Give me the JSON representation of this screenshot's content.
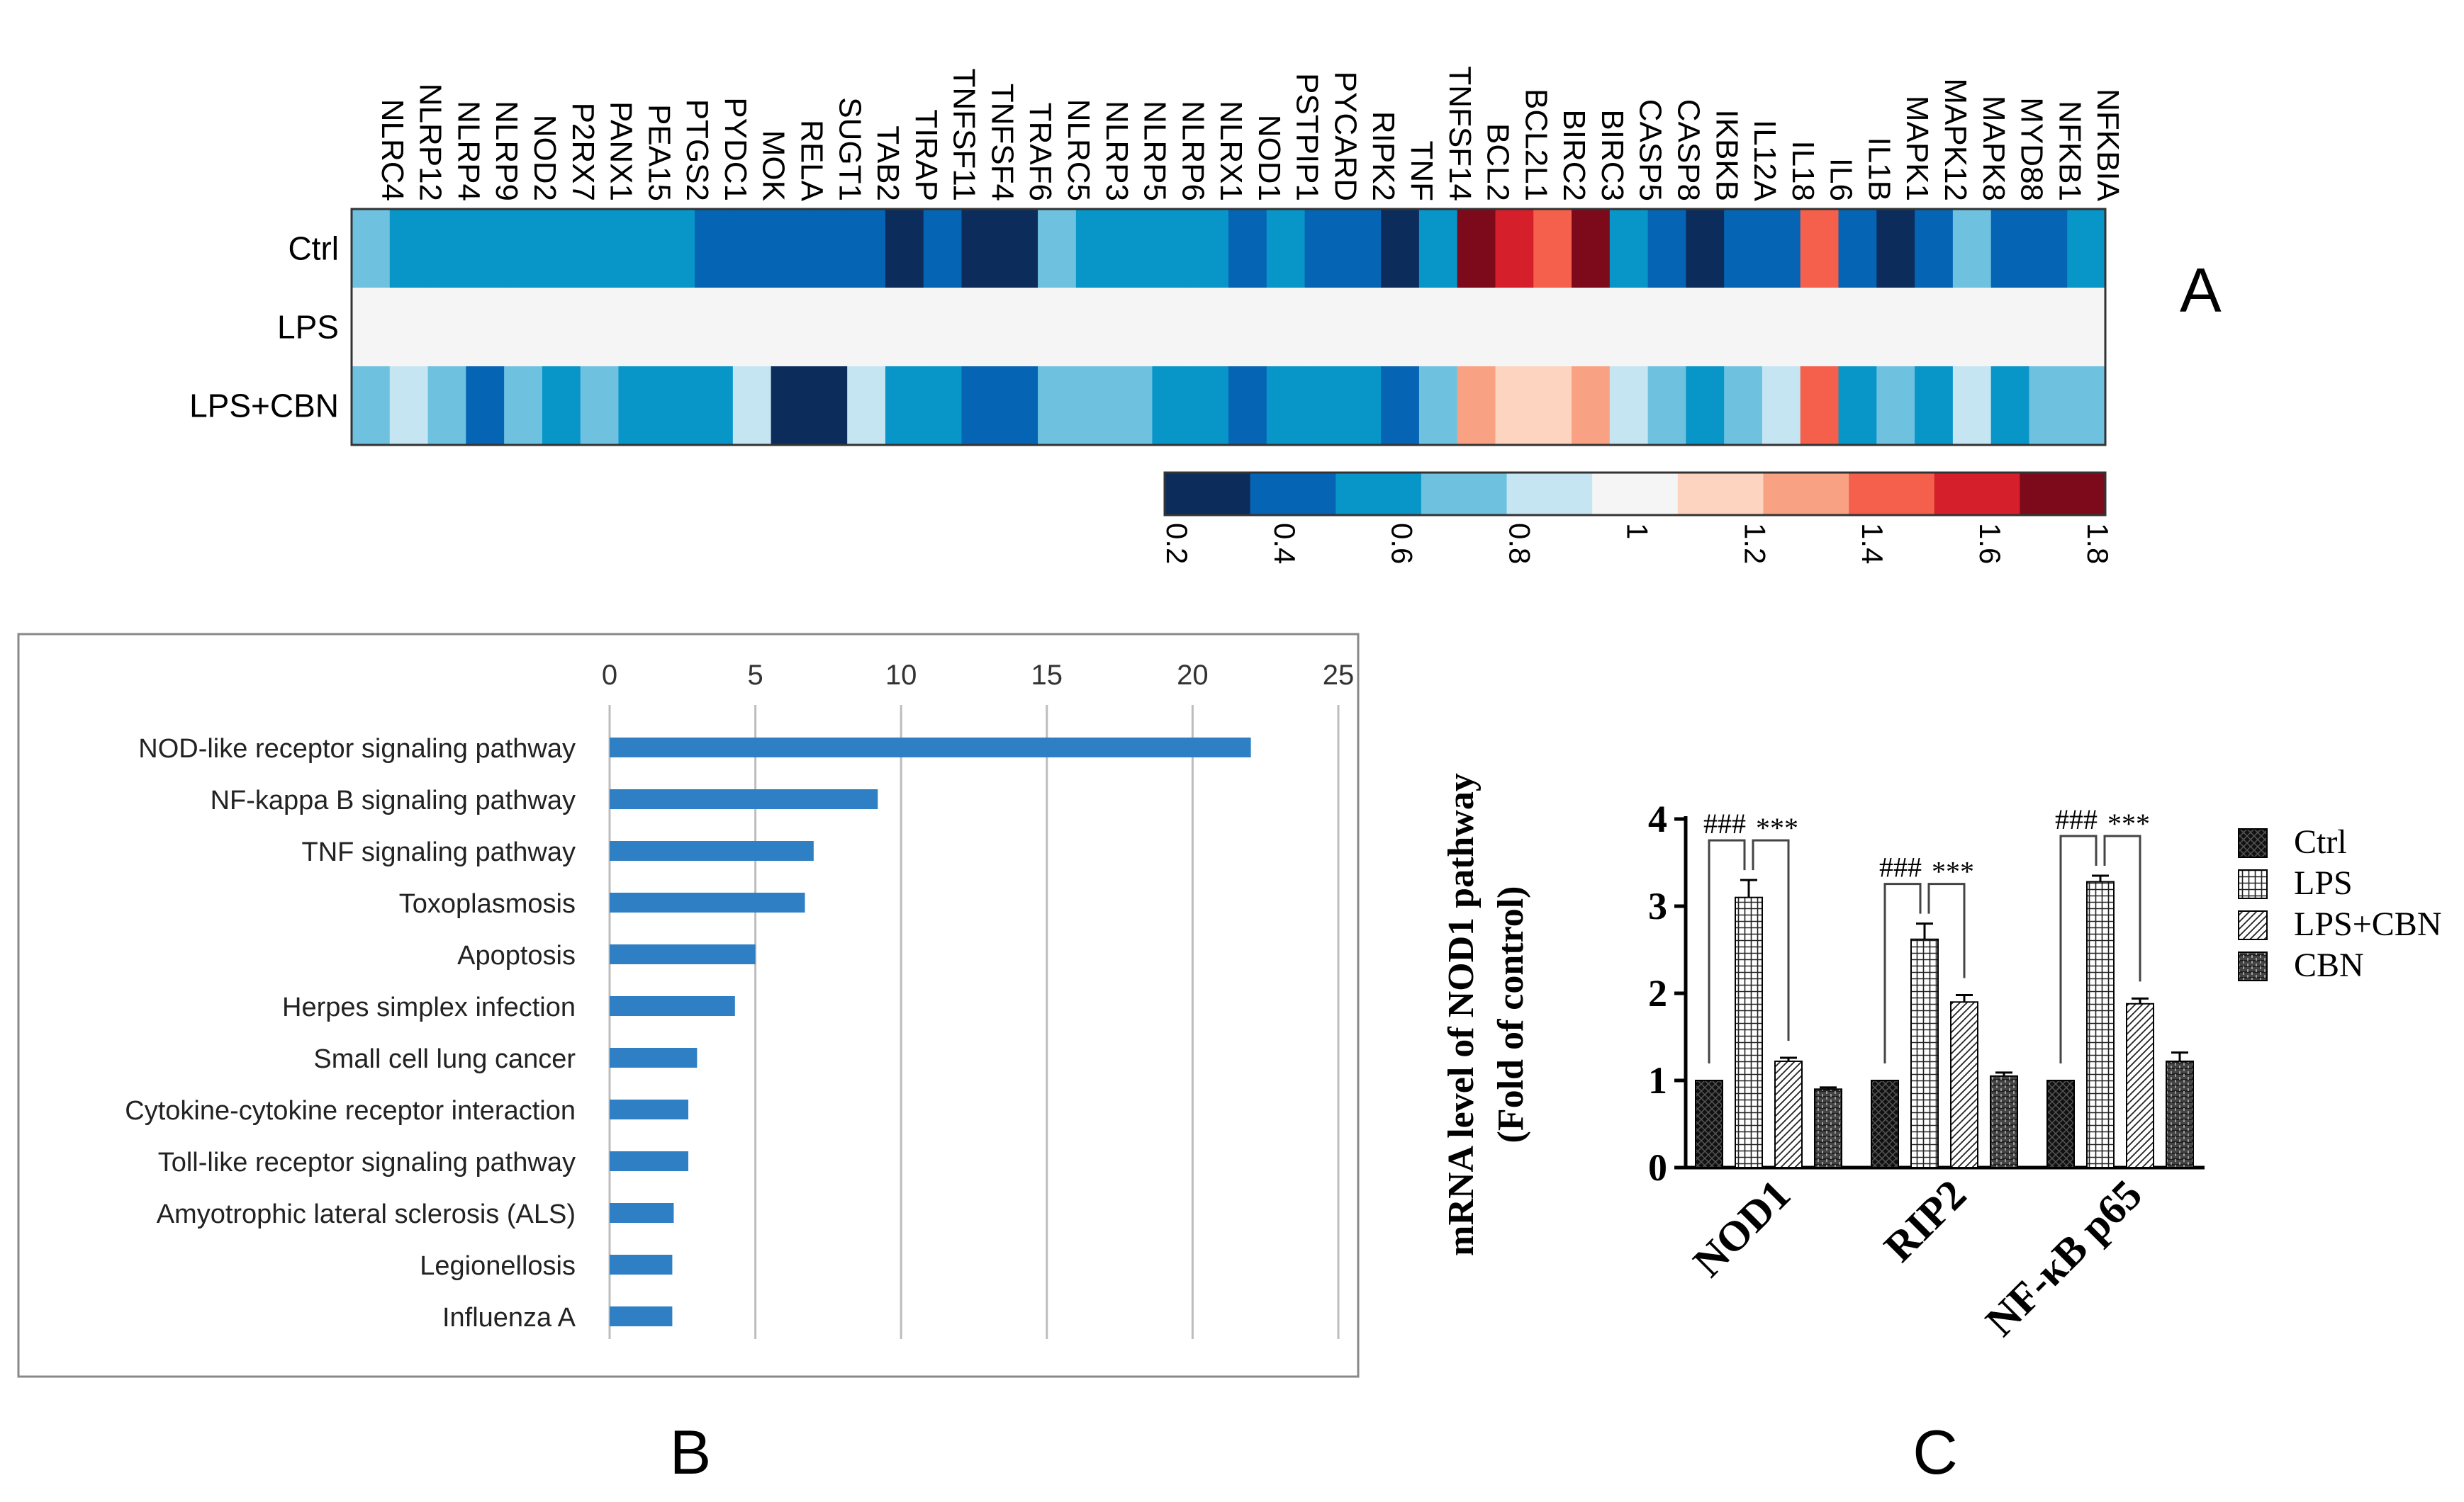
{
  "chart_data": [
    {
      "panel": "A",
      "type": "heatmap",
      "genes": [
        "NLRC4",
        "NLRP12",
        "NLRP4",
        "NLRP9",
        "NOD2",
        "P2RX7",
        "PANX1",
        "PEA15",
        "PTGS2",
        "PYDC1",
        "MOK",
        "RELA",
        "SUGT1",
        "TAB2",
        "TIRAP",
        "TNFSF11",
        "TNFSF4",
        "TRAF6",
        "NLRC5",
        "NLRP3",
        "NLRP5",
        "NLRP6",
        "NLRX1",
        "NOD1",
        "PSTPIP1",
        "PYCARD",
        "RIPK2",
        "TNF",
        "TNFSF14",
        "BCL2",
        "BCL2L1",
        "BIRC2",
        "BIRC3",
        "CASP5",
        "CASP8",
        "IKBKB",
        "IL12A",
        "IL18",
        "IL6",
        "IL1B",
        "MAPK1",
        "MAPK12",
        "MAPK8",
        "MYD88",
        "NFKB1",
        "NFKBIA"
      ],
      "rows": [
        {
          "label": "Ctrl",
          "values": [
            0.7,
            0.5,
            0.5,
            0.5,
            0.5,
            0.5,
            0.5,
            0.5,
            0.5,
            0.4,
            0.4,
            0.4,
            0.4,
            0.4,
            0.2,
            0.4,
            0.2,
            0.2,
            0.7,
            0.5,
            0.5,
            0.5,
            0.5,
            0.4,
            0.5,
            0.4,
            0.4,
            0.2,
            0.5,
            1.8,
            1.6,
            1.5,
            1.8,
            0.5,
            0.4,
            0.2,
            0.4,
            0.4,
            1.45,
            0.4,
            0.2,
            0.4,
            0.7,
            0.4,
            0.4,
            0.5
          ]
        },
        {
          "label": "LPS",
          "values": [
            1,
            1,
            1,
            1,
            1,
            1,
            1,
            1,
            1,
            1,
            1,
            1,
            1,
            1,
            1,
            1,
            1,
            1,
            1,
            1,
            1,
            1,
            1,
            1,
            1,
            1,
            1,
            1,
            1,
            1,
            1,
            1,
            1,
            1,
            1,
            1,
            1,
            1,
            1,
            1,
            1,
            1,
            1,
            1,
            1,
            1
          ]
        },
        {
          "label": "LPS+CBN",
          "values": [
            0.7,
            0.8,
            0.7,
            0.4,
            0.7,
            0.5,
            0.7,
            0.5,
            0.5,
            0.5,
            0.85,
            0.2,
            0.2,
            0.8,
            0.5,
            0.5,
            0.4,
            0.4,
            0.7,
            0.7,
            0.7,
            0.5,
            0.5,
            0.4,
            0.5,
            0.5,
            0.5,
            0.4,
            0.7,
            1.3,
            1.15,
            1.15,
            1.25,
            0.8,
            0.7,
            0.5,
            0.7,
            0.8,
            1.45,
            0.5,
            0.7,
            0.6,
            0.8,
            0.5,
            0.7,
            0.7
          ]
        }
      ],
      "colorbar": {
        "ticks": [
          "0.2",
          "0.4",
          "0.6",
          "0.8",
          "1",
          "1.2",
          "1.4",
          "1.6",
          "1.8"
        ],
        "min": 0.2,
        "max": 1.8,
        "colors": [
          "#0c2c5c",
          "#0564b4",
          "#0895c8",
          "#6ec2e0",
          "#c6e5f2",
          "#f5f5f5",
          "#fdd4bf",
          "#f9a283",
          "#f4604b",
          "#d51f2a",
          "#7c0a1a"
        ]
      }
    },
    {
      "panel": "B",
      "type": "bar",
      "orientation": "horizontal",
      "categories": [
        "NOD-like receptor signaling pathway",
        "NF-kappa B signaling pathway",
        "TNF signaling pathway",
        "Toxoplasmosis",
        "Apoptosis",
        "Herpes simplex infection",
        "Small cell lung cancer",
        "Cytokine-cytokine receptor interaction",
        "Toll-like receptor signaling pathway",
        "Amyotrophic lateral sclerosis (ALS)",
        "Legionellosis",
        "Influenza A"
      ],
      "values": [
        22,
        9.2,
        7,
        6.7,
        5,
        4.3,
        3,
        2.7,
        2.7,
        2.2,
        2.15,
        2.15
      ],
      "xlim": [
        0,
        25
      ],
      "xticks": [
        "0",
        "5",
        "10",
        "15",
        "20",
        "25"
      ],
      "grid": true,
      "color": "#2f7fc4"
    },
    {
      "panel": "C",
      "type": "bar",
      "ylabel_line1": "mRNA level of NOD1 pathway",
      "ylabel_line2": "(Fold of control)",
      "categories": [
        "NOD1",
        "RIP2",
        "NF-κB p65"
      ],
      "ylim": [
        0,
        4
      ],
      "yticks": [
        "0",
        "1",
        "2",
        "3",
        "4"
      ],
      "series": [
        {
          "name": "Ctrl",
          "values": [
            1,
            1,
            1
          ],
          "errors": [
            0,
            0,
            0
          ]
        },
        {
          "name": "LPS",
          "values": [
            3.1,
            2.62,
            3.28
          ],
          "errors": [
            0.2,
            0.18,
            0.07
          ]
        },
        {
          "name": "LPS+CBN",
          "values": [
            1.22,
            1.9,
            1.88
          ],
          "errors": [
            0.04,
            0.08,
            0.06
          ]
        },
        {
          "name": "CBN",
          "values": [
            0.9,
            1.05,
            1.22
          ],
          "errors": [
            0.02,
            0.04,
            0.1
          ]
        }
      ],
      "significance": {
        "vs_ctrl": "###",
        "vs_lps": "***"
      },
      "legend_position": "right"
    }
  ],
  "labels": {
    "panel_a": "A",
    "panel_b": "B",
    "panel_c": "C"
  }
}
